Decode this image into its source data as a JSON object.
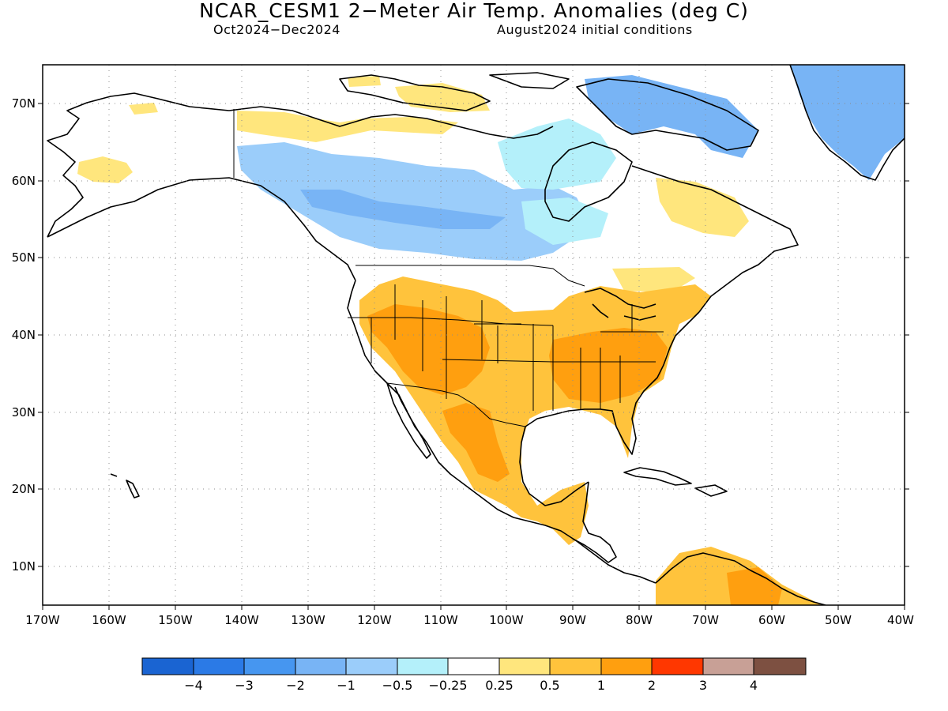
{
  "title": "NCAR_CESM1 2−Meter Air Temp. Anomalies (deg C)",
  "subtitle_left": "Oct2024−Dec2024",
  "subtitle_right": "August2024 initial conditions",
  "lat_labels": [
    "70N",
    "60N",
    "50N",
    "40N",
    "30N",
    "20N",
    "10N"
  ],
  "lon_labels": [
    "170W",
    "160W",
    "150W",
    "140W",
    "130W",
    "120W",
    "110W",
    "100W",
    "90W",
    "80W",
    "70W",
    "60W",
    "50W",
    "40W"
  ],
  "legend": {
    "colors": [
      "#1a64d2",
      "#2b7ae6",
      "#4696f0",
      "#78b4f5",
      "#9bcdfa",
      "#b4f0fa",
      "#ffffff",
      "#ffe67d",
      "#ffc33c",
      "#ff9f0f",
      "#ff3700",
      "#c8a096",
      "#7d5041"
    ],
    "labels": [
      "−4",
      "−3",
      "−2",
      "−1",
      "−0.5",
      "−0.25",
      "0.25",
      "0.5",
      "1",
      "2",
      "3",
      "4"
    ]
  },
  "anomaly_regions": [
    {
      "name": "alaska-warm",
      "color": "#ffe67d"
    },
    {
      "name": "nunavut-warm",
      "color": "#ffe67d"
    },
    {
      "name": "canada-cool",
      "color": "#9bcdfa"
    },
    {
      "name": "canada-cool-core",
      "color": "#78b4f5"
    },
    {
      "name": "hudson-cool",
      "color": "#b4f0fa"
    },
    {
      "name": "baffin-cool",
      "color": "#78b4f5"
    },
    {
      "name": "greenland-cool",
      "color": "#78b4f5"
    },
    {
      "name": "labrador-warm",
      "color": "#ffe67d"
    },
    {
      "name": "conus-mexico-warm",
      "color": "#ffc33c"
    },
    {
      "name": "southwest-warmest",
      "color": "#ff9f0f"
    },
    {
      "name": "southeast-warmest",
      "color": "#ff9f0f"
    },
    {
      "name": "mexico-warmest",
      "color": "#ff9f0f"
    },
    {
      "name": "south-america-warm",
      "color": "#ffc33c"
    },
    {
      "name": "south-america-warmest",
      "color": "#ff9f0f"
    }
  ]
}
